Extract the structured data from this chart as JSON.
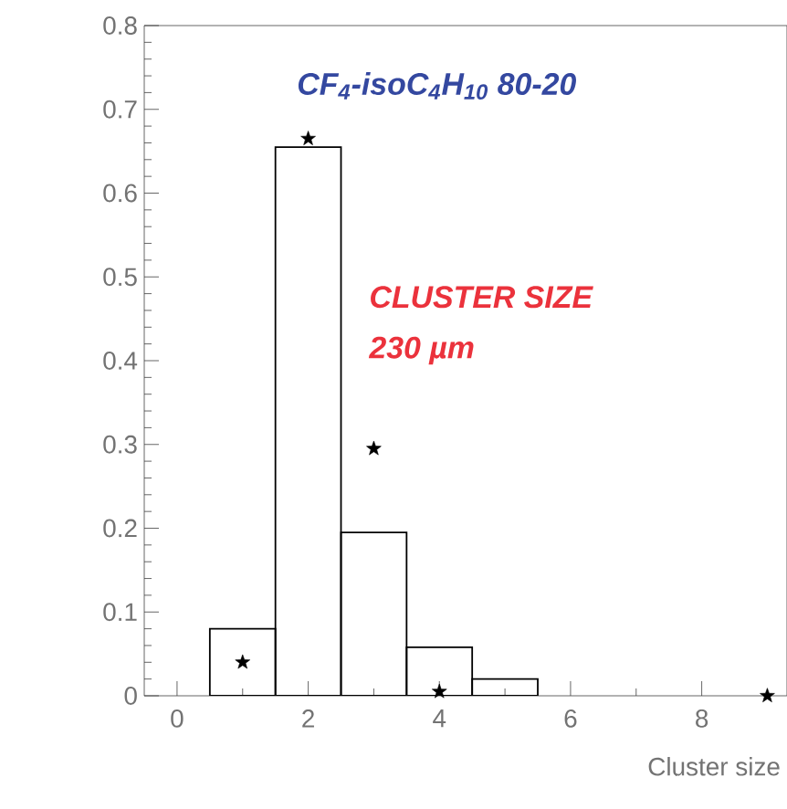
{
  "chart_data": {
    "type": "histogram",
    "xlabel": "Cluster size",
    "annotations": [
      "*CF$_{4}$-isoC$_{4}$H$_{10}$ 80-20*",
      "CLUSTER SIZE",
      "230 µm"
    ],
    "bins": [
      0.5,
      1.5,
      2.5,
      3.5,
      4.5,
      5.5
    ],
    "values": [
      0.08,
      0.655,
      0.195,
      0.058,
      0.02
    ],
    "color": "#000000",
    "series": [
      {
        "type": "scatter",
        "color": "#000000",
        "marker": "star",
        "x": [
          1,
          2,
          3,
          4,
          9
        ],
        "values": [
          0.04,
          0.665,
          0.295,
          0.005,
          0.0
        ]
      }
    ],
    "xlim": [
      -0.5,
      9.3
    ],
    "ylim": [
      0,
      0.8
    ],
    "xticks": [
      0,
      2,
      4,
      6,
      8
    ],
    "yticks": [
      0,
      0.1,
      0.2,
      0.3,
      0.4,
      0.5,
      0.6,
      0.7,
      0.8
    ],
    "grid": false
  }
}
